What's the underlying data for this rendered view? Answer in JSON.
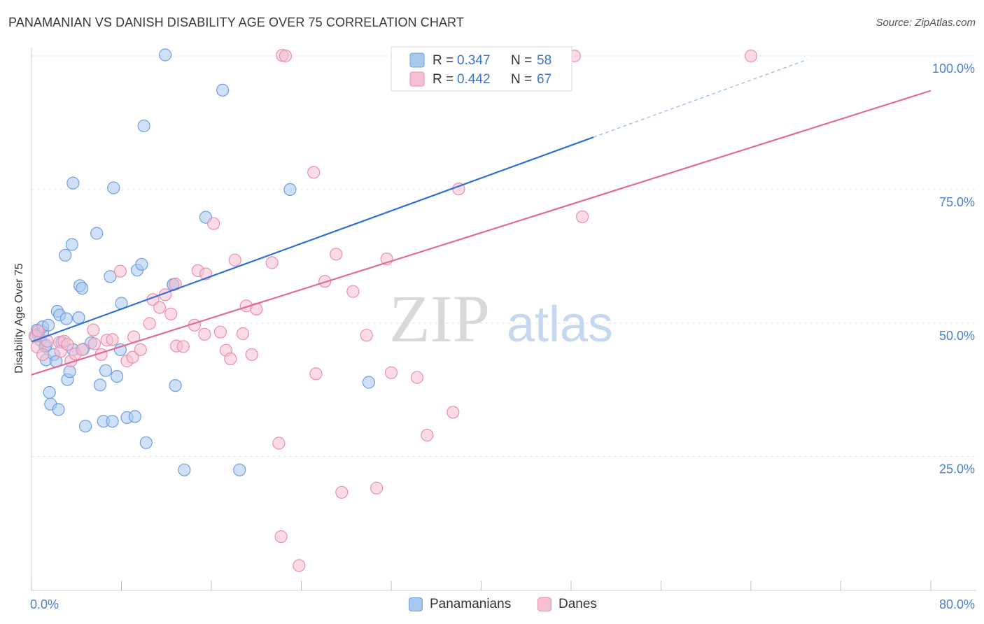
{
  "header": {
    "title": "PANAMANIAN VS DANISH DISABILITY AGE OVER 75 CORRELATION CHART",
    "source": "Source: ZipAtlas.com"
  },
  "watermark": {
    "zip": "ZIP",
    "atlas": "atlas"
  },
  "legend": {
    "r_label": "R =",
    "n_label": "N =",
    "rows": [
      {
        "r": "0.347",
        "n": "58"
      },
      {
        "r": "0.442",
        "n": "67"
      }
    ]
  },
  "bottom_legend": [
    "Panamanians",
    "Danes"
  ],
  "colors": {
    "blue_fill": "#a9c8f0",
    "blue_stroke": "#6f9fe0",
    "blue_line": "#2f6fcf",
    "pink_fill": "#f7bfd2",
    "pink_stroke": "#e98fb0",
    "pink_line": "#e06b97",
    "axis_text": "#4a7fd0",
    "grid": "#e3e3e3"
  },
  "chart_data": {
    "type": "scatter",
    "title": "PANAMANIAN VS DANISH DISABILITY AGE OVER 75 CORRELATION CHART",
    "xlabel": "",
    "ylabel": "Disability Age Over 75",
    "xlim": [
      0,
      80
    ],
    "ylim": [
      0,
      100
    ],
    "x_tick_labels": [
      "0.0%",
      "80.0%"
    ],
    "y_tick_labels": [
      "25.0%",
      "50.0%",
      "75.0%",
      "100.0%"
    ],
    "y_ticks": [
      25,
      50,
      75,
      100
    ],
    "grid": true,
    "legend_placement": "top-center",
    "series": [
      {
        "name": "Panamanians",
        "r": 0.347,
        "n": 58,
        "trend": {
          "x0": 0,
          "y0": 46.5,
          "x1": 50,
          "y1": 84.8,
          "dashed_to_x": 69,
          "dashed_to_y": 99.3
        },
        "points": [
          [
            0.4,
            47.5
          ],
          [
            0.5,
            48.7
          ],
          [
            0.6,
            47.9
          ],
          [
            0.8,
            46.8
          ],
          [
            1.0,
            48.3
          ],
          [
            1.0,
            49.3
          ],
          [
            1.2,
            45.6
          ],
          [
            1.3,
            45.8
          ],
          [
            1.3,
            43.1
          ],
          [
            1.5,
            49.6
          ],
          [
            1.6,
            37.0
          ],
          [
            1.7,
            34.8
          ],
          [
            2.0,
            44.1
          ],
          [
            2.2,
            42.8
          ],
          [
            2.3,
            52.2
          ],
          [
            2.4,
            33.8
          ],
          [
            2.5,
            51.5
          ],
          [
            2.7,
            46.4
          ],
          [
            3.0,
            62.7
          ],
          [
            3.1,
            50.8
          ],
          [
            3.2,
            39.4
          ],
          [
            3.4,
            40.9
          ],
          [
            3.6,
            64.7
          ],
          [
            3.7,
            76.2
          ],
          [
            3.7,
            45.0
          ],
          [
            4.2,
            51.0
          ],
          [
            4.3,
            57.0
          ],
          [
            4.5,
            56.5
          ],
          [
            4.6,
            45.1
          ],
          [
            4.8,
            30.7
          ],
          [
            5.3,
            46.3
          ],
          [
            5.8,
            66.8
          ],
          [
            6.1,
            38.4
          ],
          [
            6.4,
            31.6
          ],
          [
            6.6,
            41.1
          ],
          [
            7.0,
            58.7
          ],
          [
            7.2,
            31.6
          ],
          [
            7.3,
            75.3
          ],
          [
            7.6,
            40.0
          ],
          [
            7.9,
            45.0
          ],
          [
            8.0,
            53.7
          ],
          [
            8.5,
            32.3
          ],
          [
            9.2,
            32.5
          ],
          [
            9.4,
            59.9
          ],
          [
            9.8,
            61.0
          ],
          [
            10.0,
            86.9
          ],
          [
            10.2,
            27.6
          ],
          [
            11.9,
            100.2
          ],
          [
            12.6,
            57.2
          ],
          [
            12.6,
            57.2
          ],
          [
            12.8,
            38.3
          ],
          [
            13.6,
            22.5
          ],
          [
            15.5,
            69.8
          ],
          [
            17.0,
            93.6
          ],
          [
            18.5,
            22.5
          ],
          [
            23.0,
            75.0
          ],
          [
            30.0,
            38.9
          ],
          [
            43.0,
            100.3
          ]
        ]
      },
      {
        "name": "Danes",
        "r": 0.442,
        "n": 67,
        "trend": {
          "x0": 0,
          "y0": 40.3,
          "x1": 80,
          "y1": 93.5
        },
        "points": [
          [
            0.3,
            47.6
          ],
          [
            0.5,
            45.5
          ],
          [
            0.6,
            48.5
          ],
          [
            1.0,
            44.1
          ],
          [
            1.4,
            46.6
          ],
          [
            2.5,
            46.4
          ],
          [
            2.6,
            44.7
          ],
          [
            2.9,
            46.6
          ],
          [
            3.2,
            46.0
          ],
          [
            3.5,
            42.9
          ],
          [
            3.9,
            44.2
          ],
          [
            4.5,
            45.0
          ],
          [
            5.5,
            48.7
          ],
          [
            5.6,
            46.1
          ],
          [
            6.2,
            44.1
          ],
          [
            6.7,
            46.8
          ],
          [
            7.2,
            46.9
          ],
          [
            7.9,
            59.7
          ],
          [
            8.5,
            42.9
          ],
          [
            9.0,
            43.6
          ],
          [
            9.1,
            47.4
          ],
          [
            9.7,
            45.0
          ],
          [
            10.5,
            49.9
          ],
          [
            10.8,
            54.4
          ],
          [
            11.4,
            52.9
          ],
          [
            11.9,
            55.3
          ],
          [
            12.4,
            51.7
          ],
          [
            12.8,
            57.3
          ],
          [
            12.9,
            45.7
          ],
          [
            13.5,
            45.6
          ],
          [
            14.5,
            49.6
          ],
          [
            14.8,
            59.8
          ],
          [
            15.4,
            47.9
          ],
          [
            15.5,
            59.2
          ],
          [
            16.2,
            68.6
          ],
          [
            16.8,
            48.3
          ],
          [
            17.3,
            44.9
          ],
          [
            17.7,
            43.3
          ],
          [
            18.1,
            61.8
          ],
          [
            18.8,
            48.0
          ],
          [
            19.1,
            53.2
          ],
          [
            19.6,
            44.1
          ],
          [
            20.0,
            52.6
          ],
          [
            21.4,
            61.3
          ],
          [
            22.0,
            27.5
          ],
          [
            22.2,
            10.0
          ],
          [
            22.3,
            100.1
          ],
          [
            22.6,
            100.0
          ],
          [
            23.8,
            4.6
          ],
          [
            25.1,
            78.2
          ],
          [
            25.3,
            40.5
          ],
          [
            26.1,
            57.8
          ],
          [
            27.1,
            62.9
          ],
          [
            27.6,
            18.3
          ],
          [
            28.6,
            55.9
          ],
          [
            29.8,
            47.7
          ],
          [
            30.7,
            19.1
          ],
          [
            31.6,
            62.0
          ],
          [
            32.0,
            40.7
          ],
          [
            34.3,
            39.8
          ],
          [
            35.2,
            29.0
          ],
          [
            37.5,
            33.3
          ],
          [
            38.0,
            75.1
          ],
          [
            44.5,
            100.1
          ],
          [
            48.3,
            100.0
          ],
          [
            49.0,
            69.9
          ],
          [
            64.0,
            100.0
          ]
        ]
      }
    ]
  }
}
